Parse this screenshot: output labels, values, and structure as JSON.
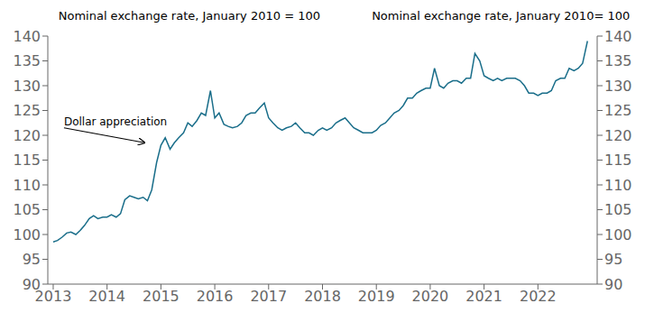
{
  "chart_data": {
    "type": "line",
    "title": "Nominal exchange rate, January 2010 = 100",
    "subtitle": "Nominal exchange rate, January 2010= 100",
    "x": [
      2013.0,
      2013.08,
      2013.17,
      2013.25,
      2013.33,
      2013.42,
      2013.5,
      2013.58,
      2013.67,
      2013.75,
      2013.83,
      2013.92,
      2014.0,
      2014.08,
      2014.17,
      2014.25,
      2014.33,
      2014.42,
      2014.5,
      2014.58,
      2014.67,
      2014.75,
      2014.83,
      2014.92,
      2015.0,
      2015.08,
      2015.17,
      2015.25,
      2015.33,
      2015.42,
      2015.5,
      2015.58,
      2015.67,
      2015.75,
      2015.83,
      2015.92,
      2016.0,
      2016.08,
      2016.17,
      2016.25,
      2016.33,
      2016.42,
      2016.5,
      2016.58,
      2016.67,
      2016.75,
      2016.83,
      2016.92,
      2017.0,
      2017.08,
      2017.17,
      2017.25,
      2017.33,
      2017.42,
      2017.5,
      2017.58,
      2017.67,
      2017.75,
      2017.83,
      2017.92,
      2018.0,
      2018.08,
      2018.17,
      2018.25,
      2018.33,
      2018.42,
      2018.5,
      2018.58,
      2018.67,
      2018.75,
      2018.83,
      2018.92,
      2019.0,
      2019.08,
      2019.17,
      2019.25,
      2019.33,
      2019.42,
      2019.5,
      2019.58,
      2019.67,
      2019.75,
      2019.83,
      2019.92,
      2020.0,
      2020.08,
      2020.17,
      2020.25,
      2020.33,
      2020.42,
      2020.5,
      2020.58,
      2020.67,
      2020.75,
      2020.83,
      2020.92,
      2021.0,
      2021.08,
      2021.17,
      2021.25,
      2021.33,
      2021.42,
      2021.5,
      2021.58,
      2021.67,
      2021.75,
      2021.83,
      2021.92,
      2022.0,
      2022.08,
      2022.17,
      2022.25,
      2022.33,
      2022.42,
      2022.5,
      2022.58,
      2022.67,
      2022.75,
      2022.83,
      2022.92
    ],
    "values": [
      98.5,
      98.8,
      99.5,
      100.3,
      100.5,
      100.0,
      100.8,
      101.8,
      103.2,
      103.8,
      103.2,
      103.5,
      103.5,
      104.0,
      103.5,
      104.2,
      107.0,
      107.8,
      107.5,
      107.2,
      107.5,
      106.8,
      109.0,
      114.5,
      118.0,
      119.5,
      117.2,
      118.5,
      119.5,
      120.5,
      122.5,
      121.8,
      123.0,
      124.5,
      124.0,
      129.0,
      123.5,
      124.5,
      122.2,
      121.8,
      121.5,
      121.8,
      122.5,
      124.0,
      124.5,
      124.5,
      125.5,
      126.5,
      123.5,
      122.5,
      121.5,
      121.0,
      121.5,
      121.8,
      122.5,
      121.5,
      120.5,
      120.5,
      120.0,
      121.0,
      121.5,
      121.0,
      121.5,
      122.5,
      123.0,
      123.5,
      122.5,
      121.5,
      121.0,
      120.5,
      120.5,
      120.5,
      121.0,
      122.0,
      122.5,
      123.5,
      124.5,
      125.0,
      126.0,
      127.5,
      127.5,
      128.5,
      129.0,
      129.5,
      129.5,
      133.5,
      130.0,
      129.5,
      130.5,
      131.0,
      131.0,
      130.5,
      131.5,
      131.5,
      136.5,
      135.0,
      132.0,
      131.5,
      131.0,
      131.5,
      131.0,
      131.5,
      131.5,
      131.5,
      131.0,
      130.0,
      128.5,
      128.5,
      128.0,
      128.5,
      128.5,
      129.0,
      131.0,
      131.5,
      131.5,
      133.5,
      133.0,
      133.5,
      134.5,
      139.0
    ],
    "color": "#1a6e8a",
    "xlim": [
      2012.9,
      2023.1
    ],
    "xticks": [
      2013,
      2014,
      2015,
      2016,
      2017,
      2018,
      2019,
      2020,
      2021,
      2022
    ],
    "ylim": [
      90,
      140
    ],
    "yticks": [
      90,
      95,
      100,
      105,
      110,
      115,
      120,
      125,
      130,
      135,
      140
    ],
    "y2lim": [
      90,
      140
    ],
    "y2ticks": [
      90,
      95,
      100,
      105,
      110,
      115,
      120,
      125,
      130,
      135,
      140
    ],
    "grid": false,
    "annotations": [
      {
        "text": "Dollar appreciation",
        "xy": [
          2014.7,
          118.5
        ],
        "xytext": [
          2013.2,
          121.5
        ]
      }
    ]
  }
}
